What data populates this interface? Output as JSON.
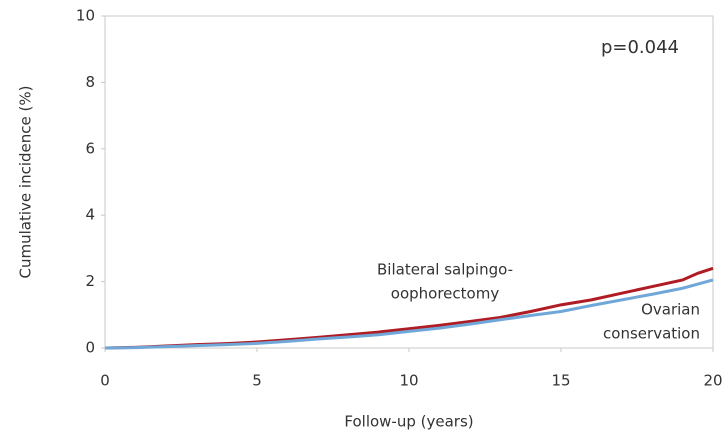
{
  "chart_data": {
    "type": "line",
    "x_label": "Follow-up (years)",
    "y_label": "Cumulative incidence (%)",
    "annotation": "p=0.044",
    "xlim": [
      0,
      20
    ],
    "xticks": [
      0,
      5,
      10,
      15,
      20
    ],
    "ylim": [
      0,
      10
    ],
    "yticks": [
      0,
      2,
      4,
      6,
      8,
      10
    ],
    "series": [
      {
        "label": [
          "Bilateral salpingo-",
          "oophorectomy"
        ],
        "color": "#b01c24",
        "x": [
          0,
          1,
          2,
          3,
          4,
          5,
          6,
          7,
          8,
          9,
          10,
          11,
          12,
          13,
          14,
          15,
          16,
          17,
          18,
          19,
          19.5,
          20
        ],
        "values": [
          0,
          0.02,
          0.06,
          0.1,
          0.13,
          0.18,
          0.25,
          0.32,
          0.4,
          0.48,
          0.58,
          0.68,
          0.8,
          0.92,
          1.1,
          1.3,
          1.45,
          1.65,
          1.85,
          2.05,
          2.25,
          2.4
        ]
      },
      {
        "label": [
          "Ovarian",
          "conservation"
        ],
        "color": "#6fa8d8",
        "x": [
          0,
          1,
          2,
          3,
          4,
          5,
          6,
          7,
          8,
          9,
          10,
          11,
          12,
          13,
          14,
          15,
          16,
          17,
          18,
          19,
          20
        ],
        "values": [
          0,
          0.01,
          0.04,
          0.07,
          0.1,
          0.14,
          0.2,
          0.27,
          0.33,
          0.4,
          0.5,
          0.6,
          0.72,
          0.85,
          0.98,
          1.1,
          1.28,
          1.45,
          1.62,
          1.8,
          2.05
        ]
      }
    ]
  }
}
